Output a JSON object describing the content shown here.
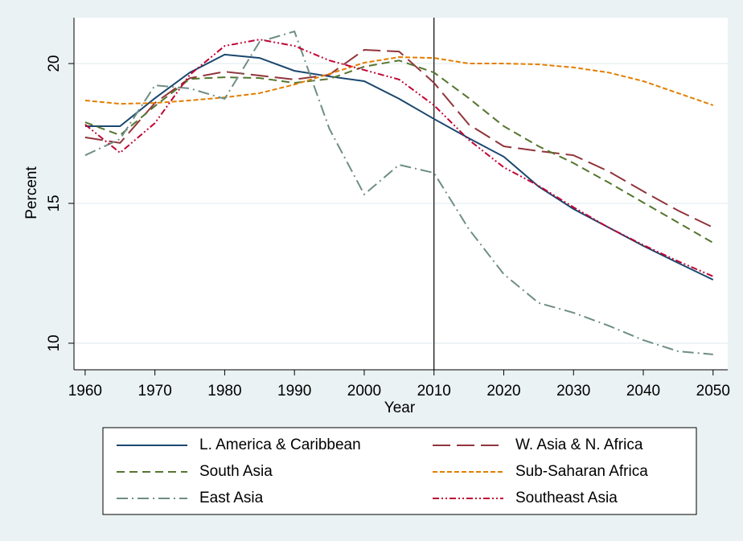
{
  "chart_data": {
    "type": "line",
    "x_label": "Year",
    "y_label": "Percent",
    "x": [
      1960,
      1965,
      1970,
      1975,
      1980,
      1985,
      1990,
      1995,
      2000,
      2005,
      2010,
      2015,
      2020,
      2025,
      2030,
      2035,
      2040,
      2045,
      2050
    ],
    "xlim": [
      1958.4,
      2052.1
    ],
    "xticks": [
      1960,
      1970,
      1980,
      1990,
      2000,
      2010,
      2020,
      2030,
      2040,
      2050
    ],
    "ylim": [
      9.05,
      21.64
    ],
    "yticks": [
      10,
      15,
      20
    ],
    "grid": true,
    "xline": 2010,
    "legend": "bottom",
    "series": [
      {
        "name": "L. America & Caribbean",
        "color": "#1a476f",
        "dash": "none",
        "values": [
          17.76,
          17.76,
          18.76,
          19.68,
          20.32,
          20.2,
          19.74,
          19.54,
          19.37,
          18.74,
          18.02,
          17.33,
          16.67,
          15.6,
          14.8,
          14.14,
          13.48,
          12.87,
          12.27
        ]
      },
      {
        "name": "W. Asia & N. Africa",
        "color": "#90353b",
        "dash": "22 8",
        "values": [
          17.36,
          17.16,
          18.59,
          19.48,
          19.71,
          19.57,
          19.43,
          19.6,
          20.49,
          20.43,
          19.31,
          17.82,
          17.04,
          16.87,
          16.72,
          16.15,
          15.43,
          14.74,
          14.14
        ]
      },
      {
        "name": "South Asia",
        "color": "#55752f",
        "dash": "10 6",
        "values": [
          17.9,
          17.44,
          18.48,
          19.45,
          19.51,
          19.48,
          19.31,
          19.45,
          19.89,
          20.11,
          19.68,
          18.76,
          17.76,
          17.04,
          16.44,
          15.75,
          15.03,
          14.31,
          13.59
        ]
      },
      {
        "name": "Sub-Saharan Africa",
        "color": "#e37e00",
        "dash": "6 3",
        "values": [
          18.68,
          18.56,
          18.59,
          18.68,
          18.79,
          18.94,
          19.25,
          19.63,
          20.03,
          20.23,
          20.2,
          20,
          20,
          19.97,
          19.86,
          19.68,
          19.37,
          18.94,
          18.51
        ]
      },
      {
        "name": "East Asia",
        "color": "#6e8e84",
        "dash": "14 5 2 5",
        "values": [
          16.72,
          17.3,
          19.22,
          19.11,
          18.74,
          20.78,
          21.15,
          17.67,
          15.32,
          16.38,
          16.09,
          14.08,
          12.47,
          11.44,
          11.09,
          10.63,
          10.11,
          9.71,
          9.6
        ]
      },
      {
        "name": "Southeast Asia",
        "color": "#c10534",
        "dash": "8 3 2 3 2 3",
        "values": [
          17.82,
          16.81,
          17.87,
          19.6,
          20.63,
          20.86,
          20.63,
          20.11,
          19.77,
          19.43,
          18.51,
          17.27,
          16.29,
          15.63,
          14.86,
          14.14,
          13.51,
          12.93,
          12.39
        ]
      }
    ]
  }
}
